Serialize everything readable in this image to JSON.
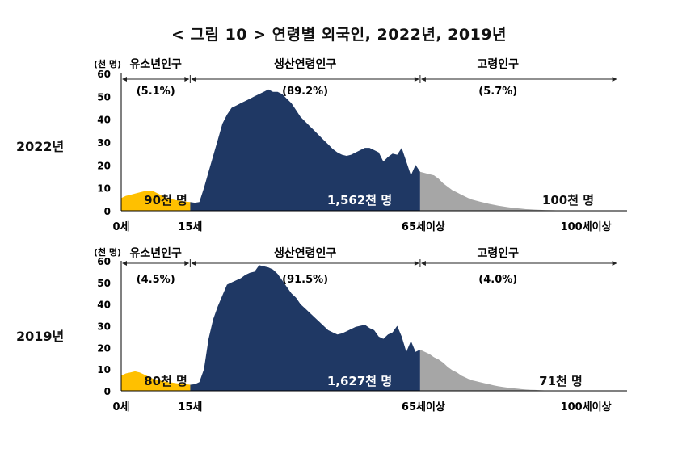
{
  "figure_title": "< 그림 10 > 연령별 외국인, 2022년, 2019년",
  "colors": {
    "youth": "#FFC000",
    "working": "#1F3864",
    "elderly": "#A6A6A6",
    "axis": "#000000"
  },
  "chart_data": [
    {
      "type": "area",
      "panel_label": "2022년",
      "unit_label": "(천 명)",
      "ylim": [
        0,
        60
      ],
      "yticks": [
        0,
        10,
        20,
        30,
        40,
        50,
        60
      ],
      "xlim": [
        0,
        110
      ],
      "x_tick_labels": [
        {
          "x": 0,
          "label": "0세"
        },
        {
          "x": 15,
          "label": "15세"
        },
        {
          "x": 65,
          "label": "65세이상"
        },
        {
          "x": 100,
          "label": "100세이상"
        }
      ],
      "groups": [
        {
          "name": "유소년인구",
          "share": "(5.1%)",
          "total": "90천 명",
          "range": [
            0,
            15
          ],
          "color_key": "youth"
        },
        {
          "name": "생산연령인구",
          "share": "(89.2%)",
          "total": "1,562천 명",
          "range": [
            15,
            65
          ],
          "color_key": "working"
        },
        {
          "name": "고령인구",
          "share": "(5.7%)",
          "total": "100천 명",
          "range": [
            65,
            110
          ],
          "color_key": "elderly"
        }
      ],
      "values": [
        5.5,
        6.5,
        7.0,
        7.5,
        8.0,
        8.5,
        8.8,
        8.5,
        7.5,
        6.5,
        5.5,
        5.0,
        4.6,
        4.3,
        4.0,
        3.8,
        3.5,
        3.8,
        10,
        17,
        24,
        31,
        38,
        42,
        45,
        46,
        47,
        48,
        49,
        50,
        51,
        52,
        53,
        52,
        52,
        51,
        49,
        47,
        44,
        41,
        39,
        37,
        35,
        33,
        31,
        29,
        27,
        25.5,
        24.5,
        24,
        24.5,
        25.5,
        26.5,
        27.5,
        27.5,
        26.5,
        25.5,
        21.5,
        23.5,
        25,
        24.5,
        27.5,
        21.5,
        15.5,
        20,
        17,
        16.5,
        16,
        15.5,
        14,
        12,
        10.5,
        9,
        8,
        7,
        6,
        5,
        4.5,
        4,
        3.5,
        3,
        2.6,
        2.2,
        1.9,
        1.6,
        1.3,
        1.1,
        0.9,
        0.7,
        0.6,
        0.5,
        0.4,
        0.3,
        0.25,
        0.2,
        0.15,
        0.1,
        0.08,
        0.05,
        0.03,
        0.02
      ]
    },
    {
      "type": "area",
      "panel_label": "2019년",
      "unit_label": "(천 명)",
      "ylim": [
        0,
        60
      ],
      "yticks": [
        0,
        10,
        20,
        30,
        40,
        50,
        60
      ],
      "xlim": [
        0,
        110
      ],
      "x_tick_labels": [
        {
          "x": 0,
          "label": "0세"
        },
        {
          "x": 15,
          "label": "15세"
        },
        {
          "x": 65,
          "label": "65세이상"
        },
        {
          "x": 100,
          "label": "100세이상"
        }
      ],
      "groups": [
        {
          "name": "유소년인구",
          "share": "(4.5%)",
          "total": "80천 명",
          "range": [
            0,
            15
          ],
          "color_key": "youth"
        },
        {
          "name": "생산연령인구",
          "share": "(91.5%)",
          "total": "1,627천 명",
          "range": [
            15,
            65
          ],
          "color_key": "working"
        },
        {
          "name": "고령인구",
          "share": "(4.0%)",
          "total": "71천 명",
          "range": [
            65,
            110
          ],
          "color_key": "elderly"
        }
      ],
      "values": [
        7,
        8,
        8.5,
        9,
        8.5,
        7.5,
        6.5,
        5.5,
        5,
        4.5,
        4,
        3.8,
        3.5,
        3.2,
        3,
        2.8,
        3,
        4,
        10,
        24,
        33,
        39,
        44,
        49,
        50,
        51,
        52,
        53.5,
        54.5,
        55,
        58,
        57.5,
        57,
        56,
        54,
        51,
        48,
        45,
        43,
        40,
        38,
        36,
        34,
        32,
        30,
        28,
        27,
        26,
        26.5,
        27.5,
        28.5,
        29.5,
        30,
        30.5,
        29,
        28,
        25,
        24,
        26,
        27,
        30,
        25,
        18,
        23,
        18,
        19,
        18,
        17,
        15.5,
        14.5,
        13,
        11,
        9.5,
        8.5,
        7,
        6,
        5,
        4.5,
        4,
        3.5,
        3,
        2.5,
        2.1,
        1.8,
        1.5,
        1.2,
        1,
        0.8,
        0.6,
        0.5,
        0.4,
        0.3,
        0.2,
        0.15,
        0.1,
        0.08,
        0.05,
        0.03,
        0.02,
        0.01,
        0.01
      ]
    }
  ]
}
